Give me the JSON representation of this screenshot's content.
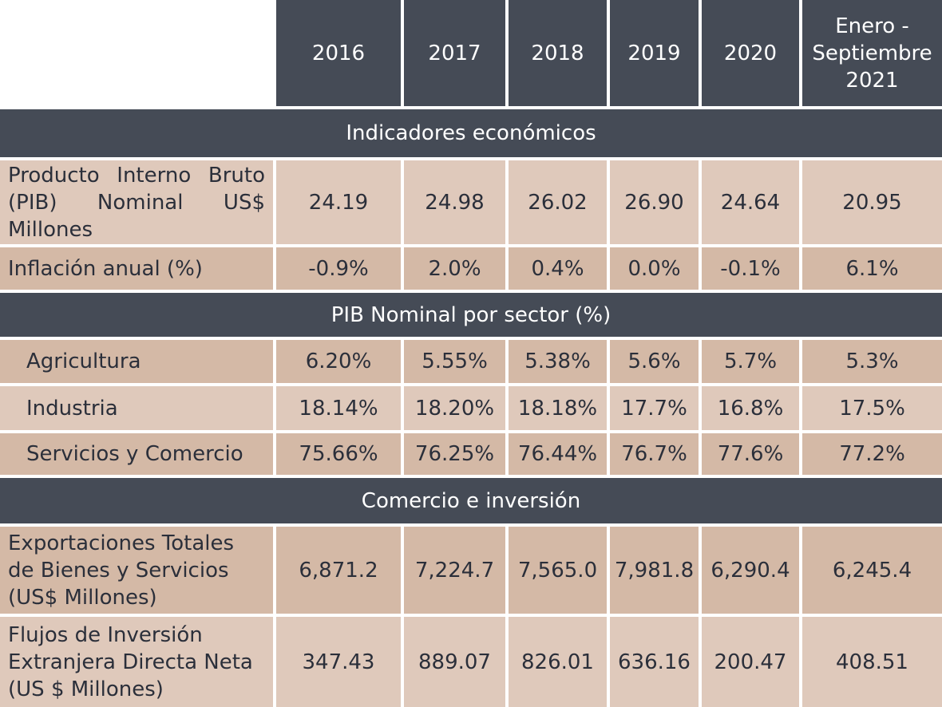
{
  "columns": [
    "2016",
    "2017",
    "2018",
    "2019",
    "2020",
    "Enero - Septiembre 2021"
  ],
  "sections": [
    {
      "title": "Indicadores económicos",
      "rows": [
        {
          "label": "Producto Interno Bruto (PIB) Nominal US$ Millones",
          "values": [
            "24.19",
            "24.98",
            "26.02",
            "26.90",
            "24.64",
            "20.95"
          ]
        },
        {
          "label": "Inflación anual (%)",
          "values": [
            "-0.9%",
            "2.0%",
            "0.4%",
            "0.0%",
            "-0.1%",
            "6.1%"
          ]
        }
      ]
    },
    {
      "title": "PIB Nominal por sector (%)",
      "rows": [
        {
          "label": "Agricultura",
          "values": [
            "6.20%",
            "5.55%",
            "5.38%",
            "5.6%",
            "5.7%",
            "5.3%"
          ]
        },
        {
          "label": "Industria",
          "values": [
            "18.14%",
            "18.20%",
            "18.18%",
            "17.7%",
            "16.8%",
            "17.5%"
          ]
        },
        {
          "label": "Servicios y Comercio",
          "values": [
            "75.66%",
            "76.25%",
            "76.44%",
            "76.7%",
            "77.6%",
            "77.2%"
          ]
        }
      ]
    },
    {
      "title": "Comercio e inversión",
      "rows": [
        {
          "label": "Exportaciones Totales de Bienes y Servicios (US$ Millones)",
          "values": [
            "6,871.2",
            "7,224.7",
            "7,565.0",
            "7,981.8",
            "6,290.4",
            "6,245.4"
          ]
        },
        {
          "label": "Flujos de Inversión Extranjera Directa Neta (US $ Millones)",
          "values": [
            "347.43",
            "889.07",
            "826.01",
            "636.16",
            "200.47",
            "408.51"
          ]
        }
      ]
    }
  ]
}
